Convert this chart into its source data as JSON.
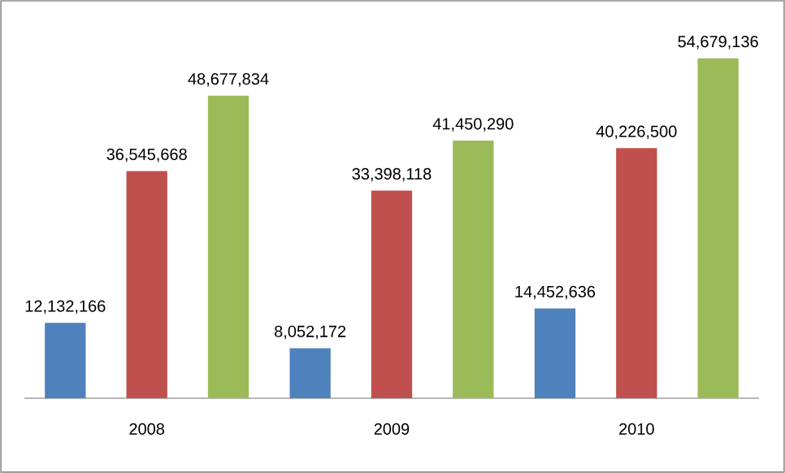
{
  "chart_data": {
    "type": "bar",
    "categories": [
      "2008",
      "2009",
      "2010"
    ],
    "series": [
      {
        "color": "#4f81bd",
        "values": [
          12132166,
          8052172,
          14452636
        ],
        "value_labels": [
          "12,132,166",
          "8,052,172",
          "14,452,636"
        ]
      },
      {
        "color": "#c0504d",
        "values": [
          36545668,
          33398118,
          40226500
        ],
        "value_labels": [
          "36,545,668",
          "33,398,118",
          "40,226,500"
        ]
      },
      {
        "color": "#9bbb59",
        "values": [
          48677834,
          41450290,
          54679136
        ],
        "value_labels": [
          "48,677,834",
          "41,450,290",
          "54,679,136"
        ]
      }
    ],
    "orientation": "vertical"
  }
}
